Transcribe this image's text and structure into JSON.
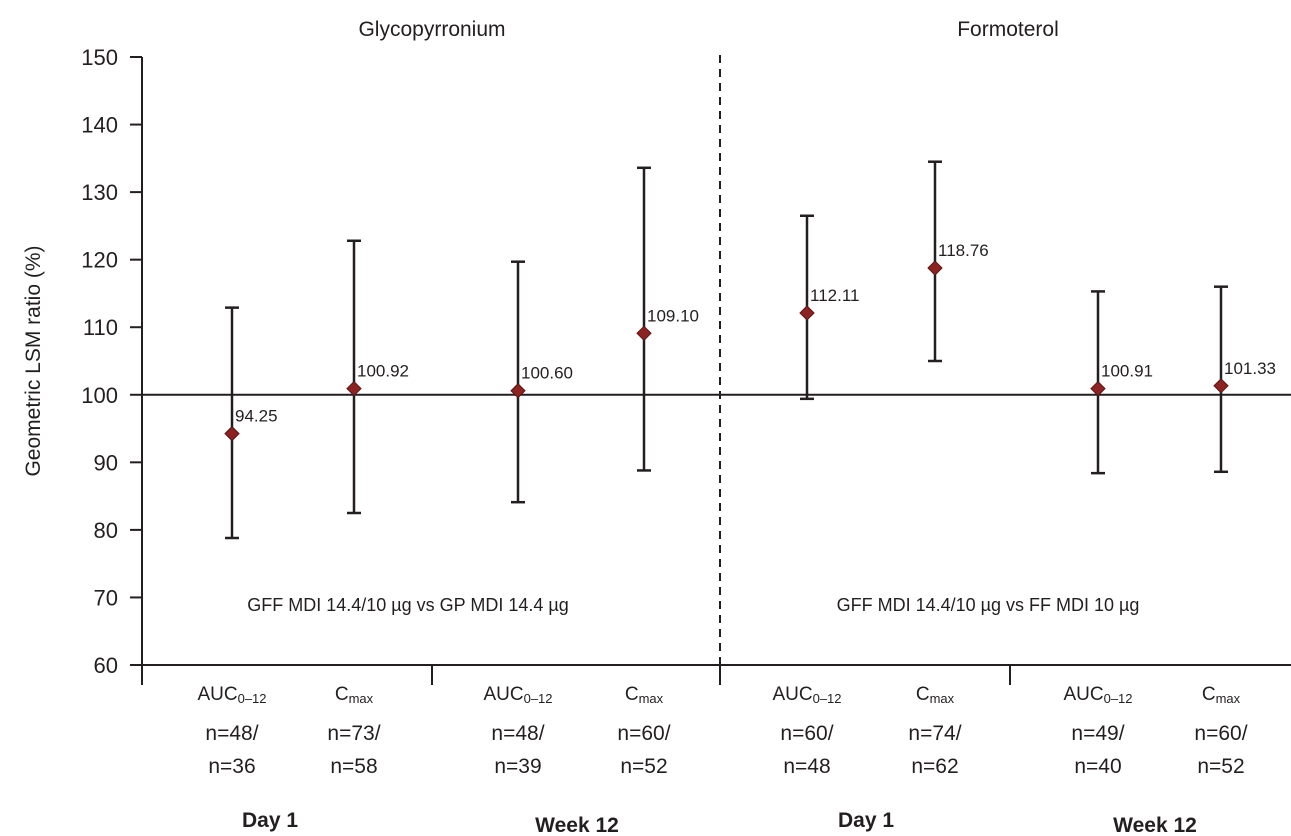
{
  "chart_data": {
    "type": "scatter",
    "ylabel": "Geometric LSM ratio (%)",
    "xlabel": "",
    "ylim": [
      60,
      150
    ],
    "yticks": [
      60,
      70,
      80,
      90,
      100,
      110,
      120,
      130,
      140,
      150
    ],
    "reference_line": 100,
    "marker_color": "#8b2323",
    "panels": [
      {
        "title": "Glycopyrronium",
        "comparison": "GFF MDI 14.4/10 µg vs GP MDI 14.4 µg",
        "groups": [
          {
            "period": "Day 1",
            "points": [
              {
                "metric": "AUC",
                "metric_sub": "0–12",
                "n_top": "n=48/",
                "n_bottom": "n=36",
                "value": 94.25,
                "label": "94.25",
                "ci": [
                  78.8,
                  112.9
                ]
              },
              {
                "metric": "C",
                "metric_sub": "max",
                "n_top": "n=73/",
                "n_bottom": "n=58",
                "value": 100.92,
                "label": "100.92",
                "ci": [
                  82.5,
                  122.8
                ]
              }
            ]
          },
          {
            "period": "Week 12",
            "points": [
              {
                "metric": "AUC",
                "metric_sub": "0–12",
                "n_top": "n=48/",
                "n_bottom": "n=39",
                "value": 100.6,
                "label": "100.60",
                "ci": [
                  84.1,
                  119.7
                ]
              },
              {
                "metric": "C",
                "metric_sub": "max",
                "n_top": "n=60/",
                "n_bottom": "n=52",
                "value": 109.1,
                "label": "109.10",
                "ci": [
                  88.8,
                  133.6
                ]
              }
            ]
          }
        ]
      },
      {
        "title": "Formoterol",
        "comparison": "GFF MDI 14.4/10 µg vs FF MDI 10 µg",
        "groups": [
          {
            "period": "Day 1",
            "points": [
              {
                "metric": "AUC",
                "metric_sub": "0–12",
                "n_top": "n=60/",
                "n_bottom": "n=48",
                "value": 112.11,
                "label": "112.11",
                "ci": [
                  99.4,
                  126.5
                ]
              },
              {
                "metric": "C",
                "metric_sub": "max",
                "n_top": "n=74/",
                "n_bottom": "n=62",
                "value": 118.76,
                "label": "118.76",
                "ci": [
                  105.0,
                  134.5
                ]
              }
            ]
          },
          {
            "period": "Week 12",
            "points": [
              {
                "metric": "AUC",
                "metric_sub": "0–12",
                "n_top": "n=49/",
                "n_bottom": "n=40",
                "value": 100.91,
                "label": "100.91",
                "ci": [
                  88.4,
                  115.3
                ]
              },
              {
                "metric": "C",
                "metric_sub": "max",
                "n_top": "n=60/",
                "n_bottom": "n=52",
                "value": 101.33,
                "label": "101.33",
                "ci": [
                  88.6,
                  116.0
                ]
              }
            ]
          }
        ]
      }
    ]
  }
}
